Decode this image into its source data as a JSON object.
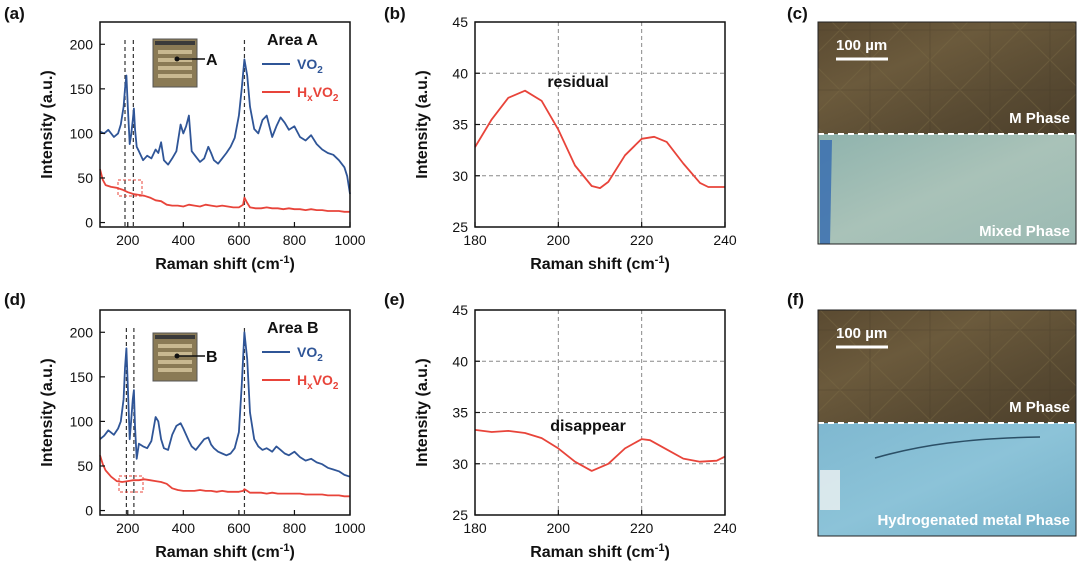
{
  "panels": {
    "a": "(a)",
    "b": "(b)",
    "c": "(c)",
    "d": "(d)",
    "e": "(e)",
    "f": "(f)"
  },
  "colors": {
    "vo2": "#2f5597",
    "hxvo2": "#e8443a",
    "guide": "#333333"
  },
  "legend": {
    "vo2_main": "VO",
    "vo2_sub": "2",
    "h_main": "H",
    "h_sub1": "x",
    "h_mid": "VO",
    "h_sub2": "2"
  },
  "micro": {
    "c": {
      "scale": "100 µm",
      "top_phase": "M Phase",
      "bottom_phase": "Mixed Phase"
    },
    "f": {
      "scale": "100 µm",
      "top_phase": "M Phase",
      "bottom_phase": "Hydrogenated metal Phase"
    }
  },
  "inset_labels": {
    "a": "A",
    "d": "B"
  },
  "chart_data": [
    {
      "id": "a",
      "type": "line",
      "xlabel_main": "Raman shift (cm",
      "xlabel_sup": "-1",
      "xlabel_end": ")",
      "ylabel": "Intensity (a.u.)",
      "xlim": [
        100,
        1000
      ],
      "ylim": [
        -5,
        225
      ],
      "xticks": [
        200,
        400,
        600,
        800,
        1000
      ],
      "yticks": [
        0,
        50,
        100,
        150,
        200
      ],
      "annotation": "Area A",
      "guides": [
        190,
        220,
        620
      ],
      "series": [
        {
          "name": "VO2",
          "color": "#2f5597",
          "x": [
            100,
            115,
            130,
            150,
            165,
            175,
            185,
            190,
            195,
            200,
            207,
            212,
            218,
            222,
            226,
            232,
            240,
            255,
            270,
            285,
            300,
            310,
            320,
            330,
            345,
            360,
            375,
            390,
            400,
            410,
            420,
            430,
            445,
            460,
            475,
            490,
            500,
            510,
            525,
            540,
            555,
            570,
            585,
            600,
            610,
            620,
            630,
            640,
            655,
            670,
            685,
            700,
            710,
            720,
            735,
            750,
            765,
            780,
            800,
            820,
            840,
            860,
            880,
            900,
            920,
            940,
            960,
            980,
            990,
            1000
          ],
          "y": [
            102,
            100,
            104,
            96,
            100,
            110,
            130,
            150,
            165,
            130,
            88,
            98,
            115,
            128,
            105,
            85,
            80,
            70,
            75,
            72,
            82,
            78,
            90,
            70,
            65,
            72,
            80,
            110,
            100,
            108,
            120,
            80,
            74,
            68,
            72,
            85,
            78,
            70,
            66,
            72,
            78,
            85,
            95,
            120,
            150,
            183,
            165,
            130,
            105,
            100,
            115,
            120,
            108,
            96,
            108,
            118,
            112,
            104,
            108,
            96,
            92,
            98,
            88,
            82,
            78,
            76,
            70,
            62,
            52,
            32
          ]
        },
        {
          "name": "HxVO2",
          "color": "#e8443a",
          "x": [
            100,
            110,
            120,
            140,
            160,
            180,
            200,
            220,
            240,
            260,
            280,
            300,
            320,
            340,
            360,
            380,
            400,
            420,
            440,
            460,
            480,
            500,
            520,
            540,
            560,
            580,
            600,
            615,
            620,
            630,
            640,
            660,
            680,
            700,
            720,
            740,
            760,
            780,
            800,
            820,
            840,
            860,
            880,
            900,
            920,
            940,
            960,
            980,
            1000
          ],
          "y": [
            60,
            48,
            42,
            40,
            39,
            37,
            34,
            32,
            31,
            30,
            28,
            25,
            24,
            20,
            19,
            19,
            18,
            20,
            19,
            18,
            20,
            19,
            18,
            19,
            18,
            17,
            17,
            20,
            28,
            22,
            17,
            16,
            16,
            17,
            16,
            16,
            15,
            16,
            15,
            15,
            14,
            15,
            14,
            14,
            13,
            13,
            13,
            12,
            12
          ]
        }
      ]
    },
    {
      "id": "b",
      "type": "line",
      "xlabel_main": "Raman shift (cm",
      "xlabel_sup": "-1",
      "xlabel_end": ")",
      "ylabel": "Intensity (a.u.)",
      "xlim": [
        180,
        240
      ],
      "ylim": [
        25,
        45
      ],
      "xticks": [
        180,
        200,
        220,
        240
      ],
      "yticks": [
        25,
        30,
        35,
        40,
        45
      ],
      "annotation": "residual",
      "series": [
        {
          "name": "HxVO2",
          "color": "#e8443a",
          "x": [
            180,
            184,
            188,
            192,
            196,
            200,
            204,
            208,
            210,
            212,
            216,
            220,
            223,
            226,
            230,
            234,
            236,
            240
          ],
          "y": [
            32.8,
            35.5,
            37.6,
            38.3,
            37.3,
            34.5,
            31.0,
            29.0,
            28.8,
            29.4,
            32.0,
            33.6,
            33.8,
            33.3,
            31.2,
            29.3,
            28.9,
            28.9
          ]
        }
      ]
    },
    {
      "id": "d",
      "type": "line",
      "xlabel_main": "Raman shift (cm",
      "xlabel_sup": "-1",
      "xlabel_end": ")",
      "ylabel": "Intensity (a.u.)",
      "xlim": [
        100,
        1000
      ],
      "ylim": [
        -5,
        225
      ],
      "xticks": [
        200,
        400,
        600,
        800,
        1000
      ],
      "yticks": [
        0,
        50,
        100,
        150,
        200
      ],
      "annotation": "Area B",
      "guides": [
        195,
        222,
        620
      ],
      "series": [
        {
          "name": "VO2",
          "color": "#2f5597",
          "x": [
            100,
            115,
            130,
            150,
            165,
            175,
            185,
            190,
            195,
            200,
            207,
            212,
            218,
            222,
            226,
            232,
            240,
            255,
            270,
            285,
            300,
            310,
            320,
            330,
            345,
            360,
            375,
            390,
            400,
            410,
            420,
            430,
            445,
            460,
            475,
            490,
            500,
            510,
            525,
            540,
            555,
            570,
            585,
            600,
            610,
            620,
            630,
            640,
            655,
            670,
            685,
            700,
            710,
            720,
            735,
            750,
            765,
            780,
            800,
            820,
            840,
            860,
            880,
            900,
            920,
            940,
            960,
            980,
            1000
          ],
          "y": [
            80,
            84,
            90,
            85,
            92,
            100,
            125,
            160,
            182,
            140,
            80,
            100,
            125,
            135,
            95,
            58,
            75,
            72,
            70,
            78,
            105,
            100,
            80,
            70,
            68,
            85,
            95,
            98,
            92,
            85,
            78,
            72,
            68,
            74,
            80,
            82,
            74,
            70,
            66,
            64,
            62,
            64,
            70,
            88,
            140,
            200,
            170,
            110,
            80,
            72,
            68,
            70,
            68,
            66,
            72,
            68,
            64,
            62,
            66,
            60,
            56,
            58,
            54,
            52,
            48,
            46,
            44,
            40,
            38
          ]
        },
        {
          "name": "HxVO2",
          "color": "#e8443a",
          "x": [
            100,
            110,
            120,
            140,
            160,
            180,
            200,
            220,
            240,
            260,
            280,
            300,
            320,
            340,
            360,
            380,
            400,
            420,
            440,
            460,
            480,
            500,
            520,
            540,
            560,
            580,
            600,
            615,
            620,
            630,
            640,
            660,
            680,
            700,
            720,
            740,
            760,
            780,
            800,
            820,
            840,
            860,
            880,
            900,
            920,
            940,
            960,
            980,
            1000
          ],
          "y": [
            62,
            52,
            45,
            38,
            33,
            32,
            33,
            34,
            34,
            35,
            34,
            33,
            32,
            30,
            25,
            23,
            22,
            22,
            22,
            23,
            22,
            22,
            21,
            22,
            21,
            21,
            21,
            22,
            24,
            22,
            20,
            20,
            20,
            19,
            20,
            19,
            19,
            19,
            19,
            19,
            18,
            18,
            18,
            18,
            17,
            17,
            17,
            16,
            16
          ]
        }
      ]
    },
    {
      "id": "e",
      "type": "line",
      "xlabel_main": "Raman shift (cm",
      "xlabel_sup": "-1",
      "xlabel_end": ")",
      "ylabel": "Intensity (a.u.)",
      "xlim": [
        180,
        240
      ],
      "ylim": [
        25,
        45
      ],
      "xticks": [
        180,
        200,
        220,
        240
      ],
      "yticks": [
        25,
        30,
        35,
        40,
        45
      ],
      "annotation": "disappear",
      "series": [
        {
          "name": "HxVO2",
          "color": "#e8443a",
          "x": [
            180,
            184,
            188,
            192,
            196,
            200,
            204,
            208,
            212,
            216,
            220,
            222,
            226,
            230,
            234,
            238,
            240
          ],
          "y": [
            33.3,
            33.1,
            33.2,
            33.0,
            32.5,
            31.5,
            30.2,
            29.3,
            30.0,
            31.5,
            32.4,
            32.3,
            31.4,
            30.5,
            30.2,
            30.3,
            30.7
          ]
        }
      ]
    }
  ]
}
